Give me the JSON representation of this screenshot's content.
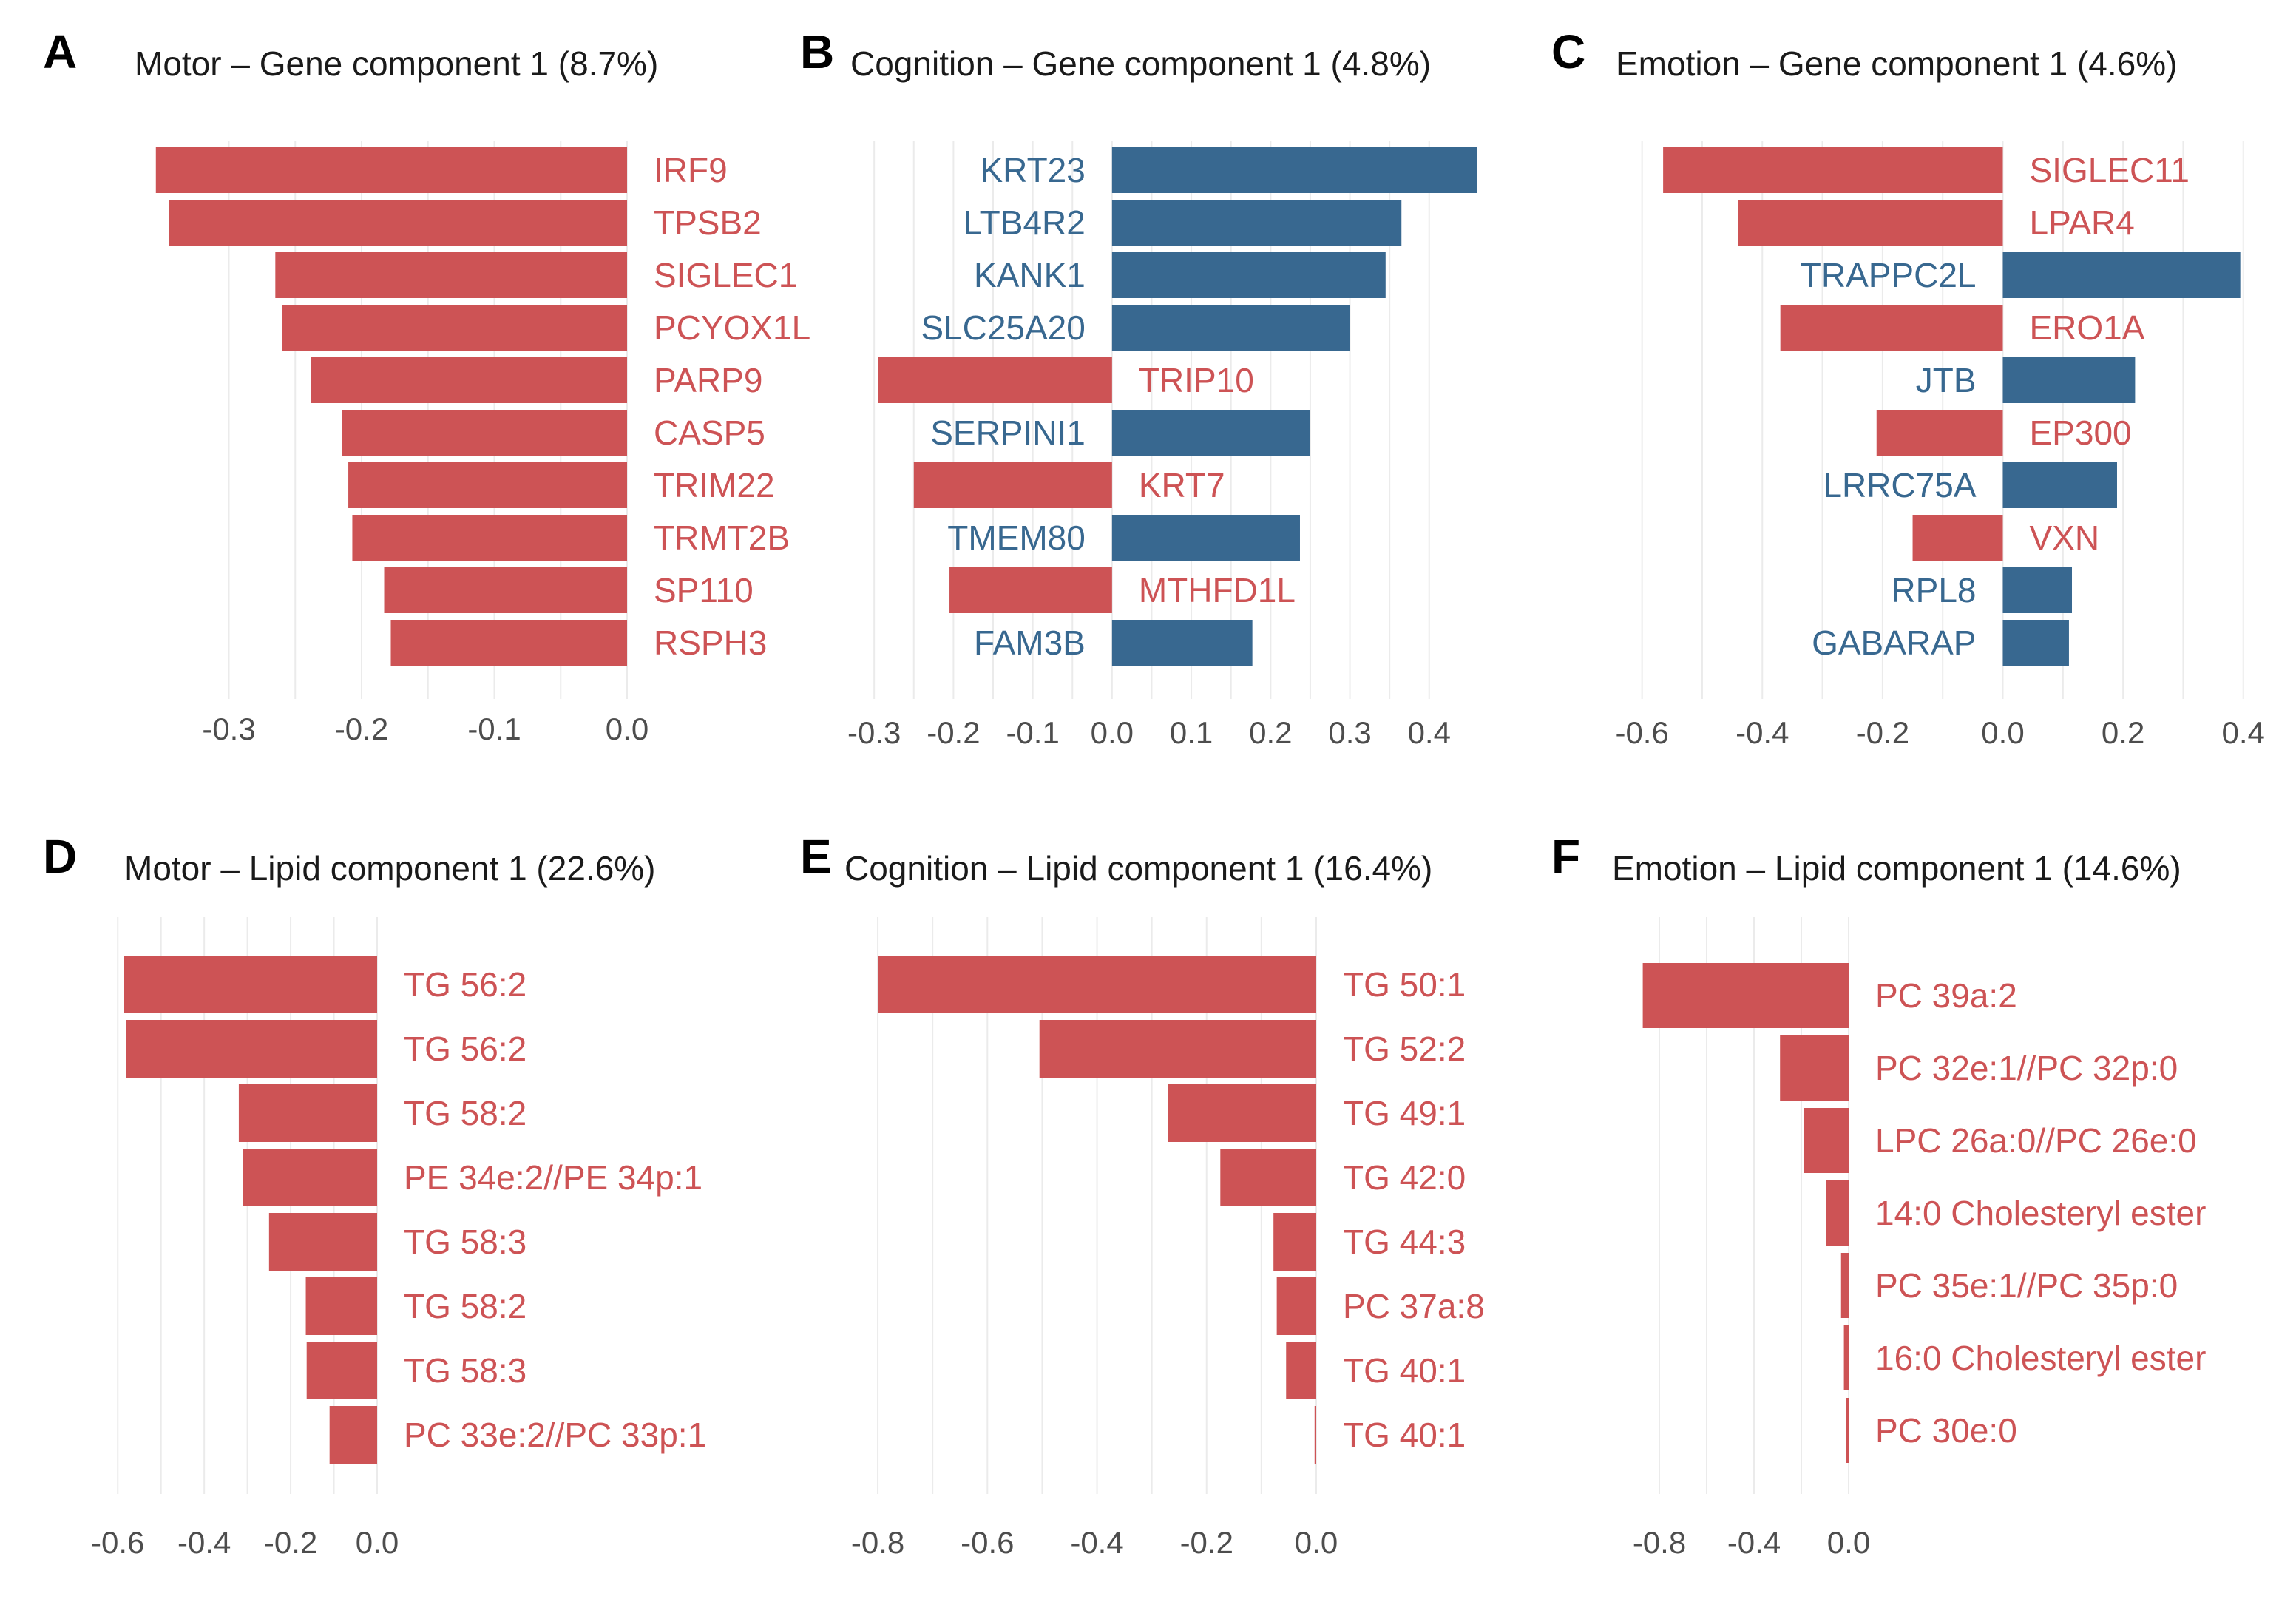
{
  "colors": {
    "positive": "#386890",
    "negative": "#CD5355"
  },
  "chart_data": [
    {
      "type": "bar",
      "orientation": "horizontal",
      "panel": "A",
      "title": "Motor – Gene component 1 (8.7%)",
      "categories": [
        "IRF9",
        "TPSB2",
        "SIGLEC1",
        "PCYOX1L",
        "PARP9",
        "CASP5",
        "TRIM22",
        "TRMT2B",
        "SP110",
        "RSPH3"
      ],
      "values": [
        -0.355,
        -0.345,
        -0.265,
        -0.26,
        -0.238,
        -0.215,
        -0.21,
        -0.207,
        -0.183,
        -0.178
      ],
      "xlim": [
        -0.4,
        0.0
      ],
      "ticks": [
        -0.3,
        -0.2,
        -0.1,
        0.0
      ],
      "tick_labels": [
        "-0.3",
        "-0.2",
        "-0.1",
        "0.0"
      ]
    },
    {
      "type": "bar",
      "orientation": "horizontal",
      "panel": "B",
      "title": "Cognition – Gene component 1 (4.8%)",
      "categories": [
        "KRT23",
        "LTB4R2",
        "KANK1",
        "SLC25A20",
        "TRIP10",
        "SERPINI1",
        "KRT7",
        "TMEM80",
        "MTHFD1L",
        "FAM3B"
      ],
      "values": [
        0.46,
        0.365,
        0.345,
        0.3,
        -0.295,
        0.25,
        -0.25,
        0.237,
        -0.205,
        0.177
      ],
      "xlim": [
        -0.33,
        0.5
      ],
      "ticks": [
        -0.3,
        -0.2,
        -0.1,
        0.0,
        0.1,
        0.2,
        0.3,
        0.4
      ],
      "tick_labels": [
        "-0.3",
        "-0.2",
        "-0.1",
        "0.0",
        "0.1",
        "0.2",
        "0.3",
        "0.4"
      ]
    },
    {
      "type": "bar",
      "orientation": "horizontal",
      "panel": "C",
      "title": "Emotion – Gene component 1 (4.6%)",
      "categories": [
        "SIGLEC11",
        "LPAR4",
        "TRAPPC2L",
        "ERO1A",
        "JTB",
        "EP300",
        "LRRC75A",
        "VXN",
        "RPL8",
        "GABARAP"
      ],
      "values": [
        -0.565,
        -0.44,
        0.395,
        -0.37,
        0.22,
        -0.21,
        0.19,
        -0.15,
        0.115,
        0.11
      ],
      "xlim": [
        -0.65,
        0.42
      ],
      "ticks": [
        -0.6,
        -0.4,
        -0.2,
        0.0,
        0.2,
        0.4
      ],
      "tick_labels": [
        "-0.6",
        "-0.4",
        "-0.2",
        "0.0",
        "0.2",
        "0.4"
      ]
    },
    {
      "type": "bar",
      "orientation": "horizontal",
      "panel": "D",
      "title": "Motor – Lipid component 1 (22.6%)",
      "categories": [
        "TG 56:2",
        "TG 56:2",
        "TG 58:2",
        "PE 34e:2//PE 34p:1",
        "TG 58:3",
        "TG 58:2",
        "TG 58:3",
        "PC 33e:2//PC 33p:1"
      ],
      "values": [
        -0.585,
        -0.58,
        -0.32,
        -0.31,
        -0.25,
        -0.165,
        -0.163,
        -0.11
      ],
      "xlim": [
        -0.65,
        0.0
      ],
      "ticks": [
        -0.6,
        -0.4,
        -0.2,
        0.0
      ],
      "tick_labels": [
        "-0.6",
        "-0.4",
        "-0.2",
        "0.0"
      ]
    },
    {
      "type": "bar",
      "orientation": "horizontal",
      "panel": "E",
      "title": "Cognition – Lipid component 1 (16.4%)",
      "categories": [
        "TG 50:1",
        "TG 52:2",
        "TG 49:1",
        "TG 42:0",
        "TG 44:3",
        "PC 37a:8",
        "TG 40:1",
        "TG 40:1"
      ],
      "values": [
        -0.8,
        -0.505,
        -0.27,
        -0.175,
        -0.078,
        -0.072,
        -0.055,
        -0.003
      ],
      "xlim": [
        -0.85,
        0.0
      ],
      "ticks": [
        -0.8,
        -0.6,
        -0.4,
        -0.2,
        0.0
      ],
      "tick_labels": [
        "-0.8",
        "-0.6",
        "-0.4",
        "-0.2",
        "0.0"
      ]
    },
    {
      "type": "bar",
      "orientation": "horizontal",
      "panel": "F",
      "title": "Emotion – Lipid component 1 (14.6%)",
      "categories": [
        "PC 39a:2",
        "PC 32e:1//PC 32p:0",
        "LPC 26a:0//PC 26e:0",
        "14:0 Cholesteryl ester",
        "PC 35e:1//PC 35p:0",
        "16:0 Cholesteryl ester",
        "PC 30e:0"
      ],
      "values": [
        -0.87,
        -0.29,
        -0.19,
        -0.095,
        -0.032,
        -0.02,
        -0.012
      ],
      "xlim": [
        -1.0,
        0.0
      ],
      "ticks": [
        -0.8,
        -0.4,
        0.0
      ],
      "tick_labels": [
        "-0.8",
        "-0.4",
        "0.0"
      ]
    }
  ]
}
